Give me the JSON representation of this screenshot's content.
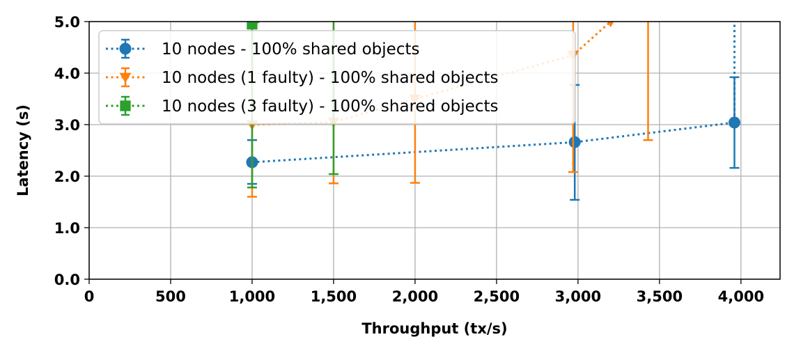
{
  "chart_data": {
    "type": "line",
    "title": "",
    "xlabel": "Throughput (tx/s)",
    "ylabel": "Latency (s)",
    "xlim": [
      0,
      4240
    ],
    "ylim": [
      0,
      5
    ],
    "x_ticks": [
      0,
      500,
      1000,
      1500,
      2000,
      2500,
      3000,
      3500,
      4000
    ],
    "x_tick_labels": [
      "0",
      "500",
      "1,000",
      "1,500",
      "2,000",
      "2,500",
      "3,000",
      "3,500",
      "4,000"
    ],
    "y_ticks": [
      0,
      1,
      2,
      3,
      4,
      5
    ],
    "y_tick_labels": [
      "0.0",
      "1.0",
      "2.0",
      "3.0",
      "4.0",
      "5.0"
    ],
    "grid": true,
    "legend_position": "top-left",
    "series": [
      {
        "name": "10 nodes - 100% shared objects",
        "color": "#1f77b4",
        "marker": "circle",
        "points": [
          {
            "x": 1000,
            "y": 2.27,
            "ylow": 1.85,
            "yhigh": 2.7
          },
          {
            "x": 2980,
            "y": 2.66,
            "ylow": 1.54,
            "yhigh": 3.77
          },
          {
            "x": 3960,
            "y": 3.04,
            "ylow": 2.16,
            "yhigh": 3.92
          },
          {
            "x": 3960,
            "y": 5.5,
            "ylow": 5.5,
            "yhigh": 5.5
          }
        ]
      },
      {
        "name": "10 nodes (1 faulty) - 100% shared objects",
        "color": "#ff7f0e",
        "marker": "triangle-down",
        "points": [
          {
            "x": 1000,
            "y": 3.0,
            "ylow": 1.6,
            "yhigh": 5.5
          },
          {
            "x": 1500,
            "y": 3.05,
            "ylow": 1.86,
            "yhigh": 5.5
          },
          {
            "x": 2000,
            "y": 3.5,
            "ylow": 1.87,
            "yhigh": 5.5
          },
          {
            "x": 2970,
            "y": 4.35,
            "ylow": 2.08,
            "yhigh": 5.5
          },
          {
            "x": 3200,
            "y": 5.0,
            "ylow": 5.0,
            "yhigh": 5.0
          },
          {
            "x": 3430,
            "y": 5.5,
            "ylow": 2.7,
            "yhigh": 5.5
          }
        ]
      },
      {
        "name": "10 nodes (3 faulty) - 100% shared objects",
        "color": "#2ca02c",
        "marker": "square",
        "points": [
          {
            "x": 1000,
            "y": 4.95,
            "ylow": 1.78,
            "yhigh": 5.5
          },
          {
            "x": 1500,
            "y": 5.5,
            "ylow": 2.04,
            "yhigh": 5.5
          }
        ]
      }
    ]
  }
}
